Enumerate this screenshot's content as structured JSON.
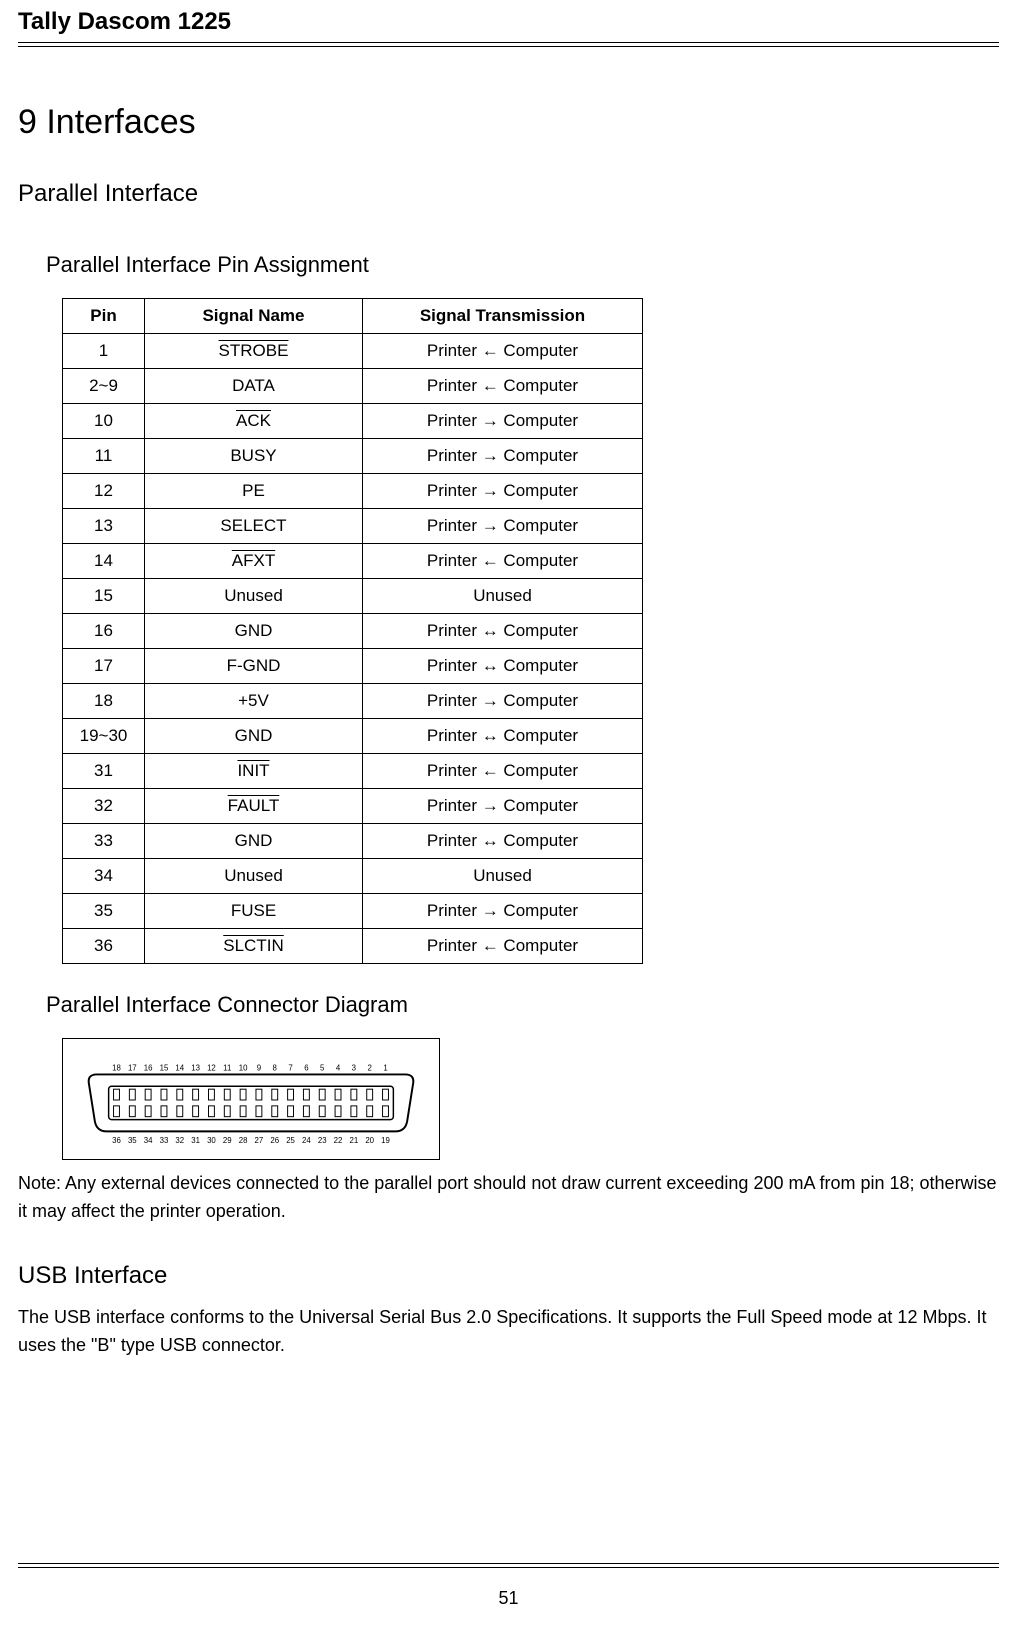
{
  "header": {
    "product": "Tally Dascom 1225"
  },
  "chapter": {
    "title": "9 Interfaces"
  },
  "parallel": {
    "title": "Parallel Interface",
    "pin_assignment_title": "Parallel Interface Pin Assignment",
    "connector_title": "Parallel Interface Connector Diagram",
    "table": {
      "headers": [
        "Pin",
        "Signal Name",
        "Signal Transmission"
      ],
      "rows": [
        {
          "pin": "1",
          "signal": "STROBE",
          "overline": "STROBE",
          "trans": "Printer ← Computer"
        },
        {
          "pin": "2~9",
          "signal": "DATA",
          "overline": "",
          "trans": "Printer ← Computer"
        },
        {
          "pin": "10",
          "signal": "ACK",
          "overline": "ACK",
          "trans": "Printer → Computer"
        },
        {
          "pin": "11",
          "signal": "BUSY",
          "overline": "",
          "trans": "Printer → Computer"
        },
        {
          "pin": "12",
          "signal": "PE",
          "overline": "",
          "trans": "Printer → Computer"
        },
        {
          "pin": "13",
          "signal": "SELECT",
          "overline": "",
          "trans": "Printer → Computer"
        },
        {
          "pin": "14",
          "signal": "AFXT",
          "overline": "AFXT",
          "trans": "Printer ← Computer"
        },
        {
          "pin": "15",
          "signal": "Unused",
          "overline": "",
          "trans": "Unused"
        },
        {
          "pin": "16",
          "signal": "GND",
          "overline": "",
          "trans": "Printer ↔ Computer"
        },
        {
          "pin": "17",
          "signal": "F-GND",
          "overline": "",
          "trans": "Printer ↔ Computer"
        },
        {
          "pin": "18",
          "signal": "+5V",
          "overline": "",
          "trans": "Printer → Computer"
        },
        {
          "pin": "19~30",
          "signal": "GND",
          "overline": "",
          "trans": "Printer ↔ Computer"
        },
        {
          "pin": "31",
          "signal": "INIT",
          "overline": "INIT",
          "trans": "Printer ← Computer"
        },
        {
          "pin": "32",
          "signal": "FAULT",
          "overline": "FAULT",
          "trans": "Printer → Computer"
        },
        {
          "pin": "33",
          "signal": "GND",
          "overline": "",
          "trans": "Printer ↔ Computer"
        },
        {
          "pin": "34",
          "signal": "Unused",
          "overline": "",
          "trans": "Unused"
        },
        {
          "pin": "35",
          "signal": "FUSE",
          "overline": "",
          "trans": "Printer → Computer"
        },
        {
          "pin": "36",
          "signal": "SLCTIN",
          "overline": "SLCTIN",
          "trans": "Printer ← Computer"
        }
      ]
    },
    "note": "Note: Any external devices connected to the parallel port should not draw current exceeding 200 mA from pin 18; otherwise it may affect the printer operation.",
    "connector": {
      "top_pins": [
        18,
        17,
        16,
        15,
        14,
        13,
        12,
        11,
        10,
        9,
        8,
        7,
        6,
        5,
        4,
        3,
        2,
        1
      ],
      "bottom_pins": [
        36,
        35,
        34,
        33,
        32,
        31,
        30,
        29,
        28,
        27,
        26,
        25,
        24,
        23,
        22,
        21,
        20,
        19
      ],
      "outline_color": "#000000",
      "pin_fill": "#ffffff"
    }
  },
  "usb": {
    "title": "USB Interface",
    "text": "The USB interface conforms to the Universal Serial Bus 2.0 Specifications. It supports the Full Speed mode at 12 Mbps. It uses the \"B\" type USB connector."
  },
  "footer": {
    "page": "51"
  }
}
